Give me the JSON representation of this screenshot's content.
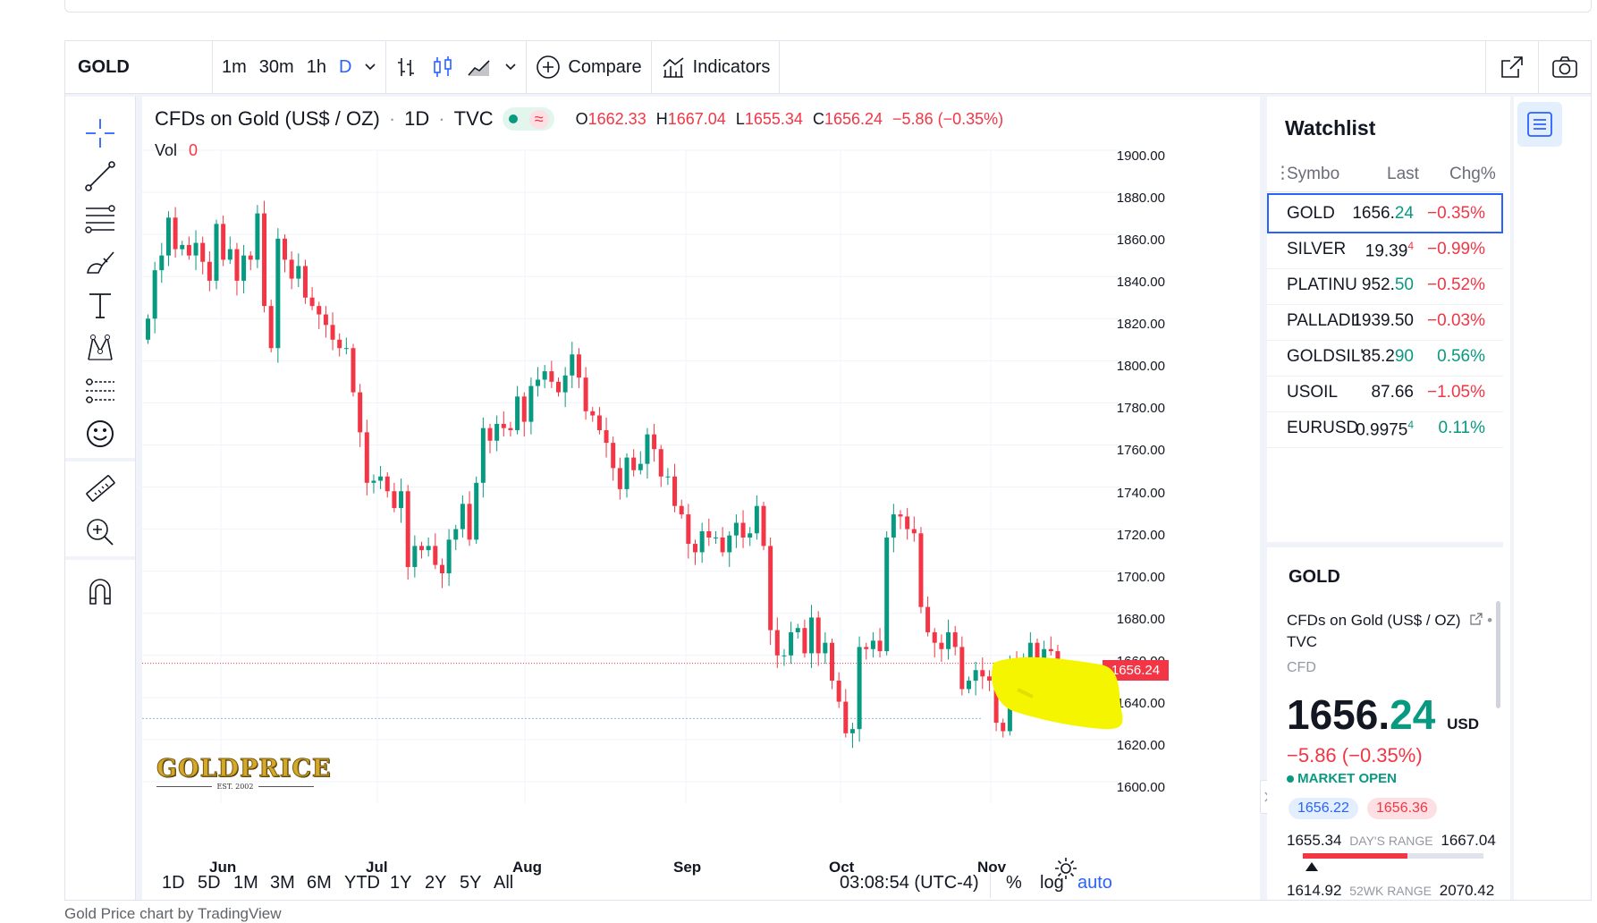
{
  "toolbar": {
    "symbol": "GOLD",
    "intervals": [
      "1m",
      "30m",
      "1h",
      "D"
    ],
    "active_interval": "D",
    "compare_label": "Compare",
    "indicators_label": "Indicators"
  },
  "legend": {
    "title": "CFDs on Gold (US$ / OZ)",
    "interval": "1D",
    "source": "TVC",
    "o_label": "O",
    "o": "1662.33",
    "h_label": "H",
    "h": "1667.04",
    "l_label": "L",
    "l": "1655.34",
    "c_label": "C",
    "c": "1656.24",
    "change": "−5.86 (−0.35%)",
    "vol_label": "Vol",
    "vol": "0"
  },
  "chart_data": {
    "type": "candlestick",
    "x_tick_labels": [
      "Jun",
      "Jul",
      "Aug",
      "Sep",
      "Oct",
      "Nov"
    ],
    "y_tick_labels": [
      "1900.00",
      "1880.00",
      "1860.00",
      "1840.00",
      "1820.00",
      "1800.00",
      "1780.00",
      "1760.00",
      "1740.00",
      "1720.00",
      "1700.00",
      "1680.00",
      "1660.00",
      "1640.00",
      "1620.00",
      "1600.00"
    ],
    "ylim": [
      1600,
      1900
    ],
    "last_price_label": "1656.24",
    "last_price": 1656.24,
    "dotted_level": 1630,
    "closes": [
      1820,
      1843,
      1850,
      1868,
      1853,
      1855,
      1850,
      1856,
      1847,
      1838,
      1865,
      1848,
      1853,
      1838,
      1850,
      1848,
      1870,
      1826,
      1806,
      1858,
      1848,
      1839,
      1845,
      1830,
      1826,
      1822,
      1817,
      1810,
      1806,
      1806,
      1785,
      1766,
      1742,
      1743,
      1745,
      1738,
      1730,
      1738,
      1702,
      1712,
      1710,
      1712,
      1703,
      1699,
      1715,
      1720,
      1732,
      1715,
      1742,
      1768,
      1762,
      1770,
      1768,
      1767,
      1783,
      1771,
      1788,
      1791,
      1795,
      1790,
      1785,
      1793,
      1803,
      1792,
      1776,
      1774,
      1767,
      1761,
      1749,
      1739,
      1754,
      1748,
      1751,
      1765,
      1758,
      1745,
      1745,
      1731,
      1727,
      1713,
      1709,
      1719,
      1716,
      1716,
      1709,
      1717,
      1723,
      1716,
      1718,
      1731,
      1712,
      1672,
      1660,
      1660,
      1671,
      1673,
      1661,
      1678,
      1661,
      1666,
      1648,
      1638,
      1623,
      1625,
      1664,
      1663,
      1667,
      1662,
      1716,
      1727,
      1726,
      1720,
      1718,
      1683,
      1671,
      1666,
      1663,
      1671,
      1664,
      1644,
      1648,
      1653,
      1650,
      1648,
      1628,
      1624,
      1656,
      1650,
      1658,
      1666,
      1657,
      1663,
      1662,
      1656
    ],
    "watermark": "GOLDPRICE",
    "watermark_sub": "EST. 2002",
    "caption": "Gold Price chart by TradingView"
  },
  "bottombar": {
    "ranges": [
      "1D",
      "5D",
      "1M",
      "3M",
      "6M",
      "YTD",
      "1Y",
      "2Y",
      "5Y",
      "All"
    ],
    "clock": "03:08:54 (UTC-4)",
    "percent": "%",
    "log": "log",
    "auto": "auto"
  },
  "watchlist": {
    "title": "Watchlist",
    "col_symbol": "Symbo",
    "col_last": "Last",
    "col_chg": "Chg%",
    "rows": [
      {
        "symbol": "GOLD",
        "last_main": "1656.",
        "last_frac": "24",
        "chg": "−0.35%",
        "dir": "down",
        "frac_dir": "up"
      },
      {
        "symbol": "SILVER",
        "last_main": "19.39",
        "last_frac": "4",
        "chg": "−0.99%",
        "dir": "down",
        "frac_dir": "down"
      },
      {
        "symbol": "PLATINU",
        "last_main": "952.",
        "last_frac": "50",
        "chg": "−0.52%",
        "dir": "down",
        "frac_dir": "up"
      },
      {
        "symbol": "PALLADII",
        "last_main": "1939.",
        "last_frac": "50",
        "chg": "−0.03%",
        "dir": "down",
        "frac_dir": "none"
      },
      {
        "symbol": "GOLDSIL'",
        "last_main": "85.2",
        "last_frac": "90",
        "chg": "0.56%",
        "dir": "up",
        "frac_dir": "up"
      },
      {
        "symbol": "USOIL",
        "last_main": "87.",
        "last_frac": "66",
        "chg": "−1.05%",
        "dir": "down",
        "frac_dir": "none"
      },
      {
        "symbol": "EURUSD",
        "last_main": "0.9975",
        "last_frac": "4",
        "chg": "0.11%",
        "dir": "up",
        "frac_dir": "up"
      }
    ]
  },
  "detail": {
    "symbol": "GOLD",
    "description": "CFDs on Gold (US$ / OZ)",
    "source": "TVC",
    "type": "CFD",
    "price_main": "1656.",
    "price_frac": "24",
    "currency": "USD",
    "change": "−5.86 (−0.35%)",
    "status": "MARKET OPEN",
    "bid": "1656.22",
    "ask": "1656.36",
    "day_low": "1655.34",
    "day_range_label": "DAY'S RANGE",
    "day_high": "1667.04",
    "day_marker": 0.05,
    "wk_low": "1614.92",
    "wk_range_label": "52WK RANGE",
    "wk_high": "2070.42"
  },
  "colors": {
    "up": "#089981",
    "down": "#f23645",
    "accent": "#2962ff",
    "highlight": "#f5f500"
  }
}
